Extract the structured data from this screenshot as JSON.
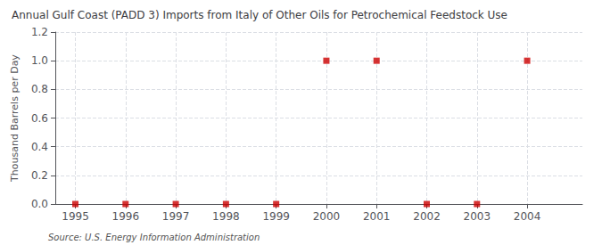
{
  "chart_data": {
    "type": "scatter",
    "title": "Annual Gulf Coast (PADD 3) Imports from Italy of Other Oils for Petrochemical Feedstock Use",
    "y_label": "Thousand Barrels per Day",
    "annotation": "Source: U.S. Energy Information Administration",
    "x": [
      1995,
      1996,
      1997,
      1998,
      1999,
      2000,
      2001,
      2002,
      2003,
      2004
    ],
    "values": [
      0.0,
      0.0,
      0.0,
      0.0,
      0.0,
      1.0,
      1.0,
      0.0,
      0.0,
      1.0
    ],
    "color": "#cc0000",
    "marker": "square",
    "xlim": [
      1994.6,
      2005.1
    ],
    "xticks": [
      1995,
      1996,
      1997,
      1998,
      1999,
      2000,
      2001,
      2002,
      2003,
      2004
    ],
    "ylim": [
      0.0,
      1.2
    ],
    "yticks": [
      {
        "value": 0.0,
        "label": "0.0"
      },
      0.2,
      0.4,
      0.6,
      0.8,
      {
        "value": 1.0,
        "label": "1.0"
      },
      1.2
    ],
    "grid": true
  }
}
